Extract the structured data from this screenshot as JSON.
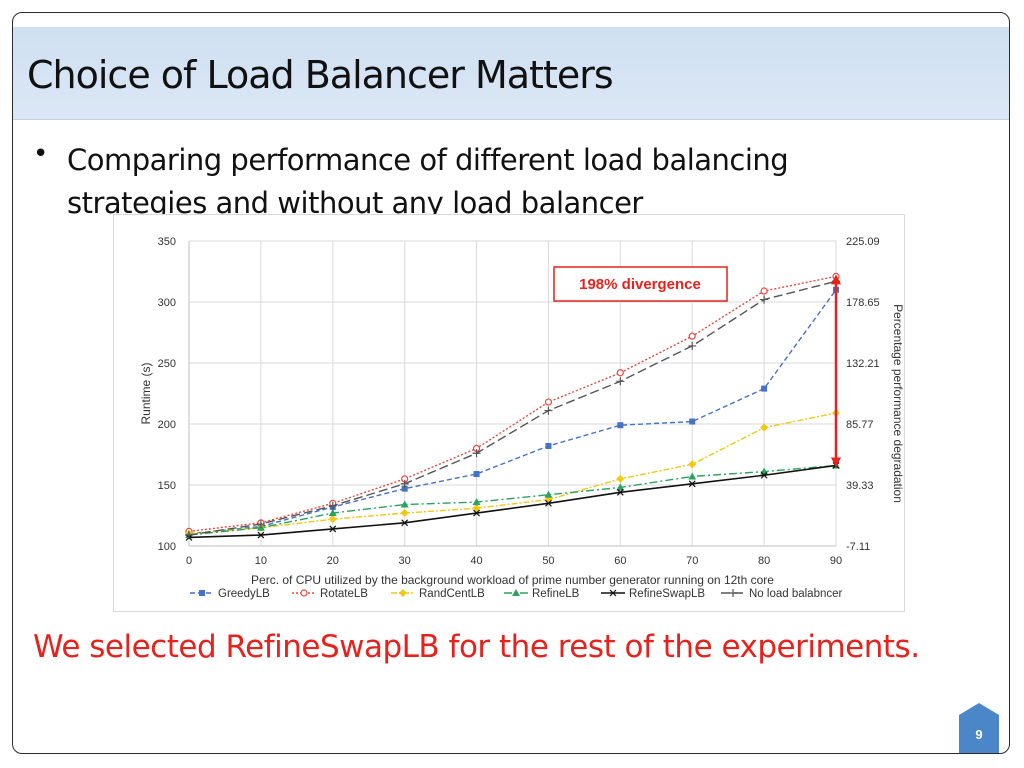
{
  "slide": {
    "title": "Choice of Load Balancer Matters",
    "bullet": "Comparing performance of different load balancing strategies and without any load balancer",
    "conclusion": "We selected RefineSwapLB for the rest of the experiments.",
    "page_number": "9",
    "colors": {
      "title_bar": "#d4e3f4",
      "conclusion": "#e8211c",
      "badge": "#4a86c8"
    }
  },
  "chart_data": {
    "type": "line",
    "title": "",
    "xlabel": "Perc. of CPU utilized by the background workload of prime number generator running on 12th core",
    "ylabel": "Runtime (s)",
    "y2label": "Percentage performance degradation",
    "x": [
      0,
      10,
      20,
      30,
      40,
      50,
      60,
      70,
      80,
      90
    ],
    "xlim": [
      0,
      90
    ],
    "ylim": [
      100,
      350
    ],
    "x_ticks": [
      "0",
      "10",
      "20",
      "30",
      "40",
      "50",
      "60",
      "70",
      "80",
      "90"
    ],
    "y_ticks": [
      "100",
      "150",
      "200",
      "250",
      "300",
      "350"
    ],
    "y2_ticks": [
      "-7.11",
      "39.33",
      "85.77",
      "132.21",
      "178.65",
      "225.09"
    ],
    "grid": true,
    "legend_position": "bottom",
    "series": [
      {
        "name": "GreedyLB",
        "color": "#4472c4",
        "dash": "5,3",
        "marker": "square",
        "values": [
          110,
          116,
          132,
          147,
          159,
          182,
          199,
          202,
          229,
          310
        ]
      },
      {
        "name": "RotateLB",
        "color": "#e8493c",
        "dash": "2,2",
        "marker": "circle",
        "values": [
          112,
          119,
          135,
          155,
          180,
          218,
          242,
          272,
          309,
          321
        ]
      },
      {
        "name": "RandCentLB",
        "color": "#f2c811",
        "dash": "6,2,2,2",
        "marker": "diamond",
        "values": [
          110,
          115,
          122,
          127,
          131,
          138,
          155,
          167,
          197,
          209
        ]
      },
      {
        "name": "RefineLB",
        "color": "#2ca25f",
        "dash": "8,3,2,3",
        "marker": "triangle",
        "values": [
          109,
          115,
          127,
          134,
          136,
          142,
          148,
          157,
          161,
          166
        ]
      },
      {
        "name": "RefineSwapLB",
        "color": "#111111",
        "dash": "",
        "marker": "x",
        "values": [
          107,
          109,
          114,
          119,
          127,
          135,
          144,
          151,
          158,
          166
        ]
      },
      {
        "name": "No load balabncer",
        "color": "#555555",
        "dash": "9,4",
        "marker": "plus",
        "values": [
          109,
          118,
          133,
          151,
          176,
          211,
          235,
          264,
          302,
          317
        ]
      }
    ],
    "annotation": {
      "text": "198% divergence",
      "x": 90,
      "y_from": 166,
      "y_to": 321,
      "color": "#e8211c"
    }
  }
}
